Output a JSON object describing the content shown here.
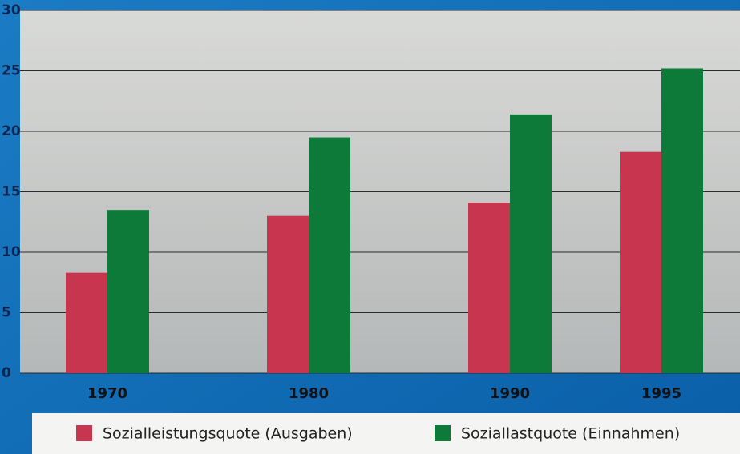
{
  "chart_data": {
    "type": "bar",
    "categories": [
      "1970",
      "1980",
      "1990",
      "1995"
    ],
    "series": [
      {
        "name": "Sozialleistungsquote (Ausgaben)",
        "color": "#c8354f",
        "values": [
          8.3,
          13.0,
          14.1,
          18.3
        ]
      },
      {
        "name": "Soziallastquote (Einnahmen)",
        "color": "#0e7a3a",
        "values": [
          13.5,
          19.5,
          21.4,
          25.2
        ]
      }
    ],
    "ylim": [
      0,
      30
    ],
    "yticks": [
      0,
      5,
      10,
      15,
      20,
      25,
      30
    ],
    "grid": true
  }
}
